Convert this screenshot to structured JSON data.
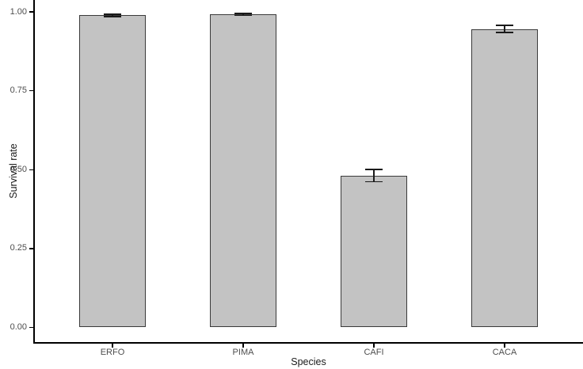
{
  "chart_data": {
    "type": "bar",
    "title": "",
    "categories": [
      "ERFO",
      "PIMA",
      "CAFI",
      "CACA"
    ],
    "values": [
      0.989,
      0.992,
      0.481,
      0.946
    ],
    "error_halfwidths": [
      0.004,
      0.003,
      0.019,
      0.011
    ],
    "xlabel": "Species",
    "ylabel": "Survival rate",
    "ylim": [
      0.0,
      1.0
    ],
    "ytick_values": [
      0.0,
      0.25,
      0.5,
      0.75,
      1.0
    ],
    "ytick_labels": [
      "0.00",
      "0.25",
      "0.50",
      "0.75",
      "1.00"
    ],
    "grid": "off",
    "legend": "none",
    "colors": {
      "bar_fill": "#c3c3c3",
      "bar_border": "#3a3a3a",
      "error_bar": "#1a1a1a",
      "axis_line": "#000000",
      "tick_text": "#4d4d4d",
      "title_text": "#1a1a1a",
      "background": "#ffffff"
    }
  }
}
